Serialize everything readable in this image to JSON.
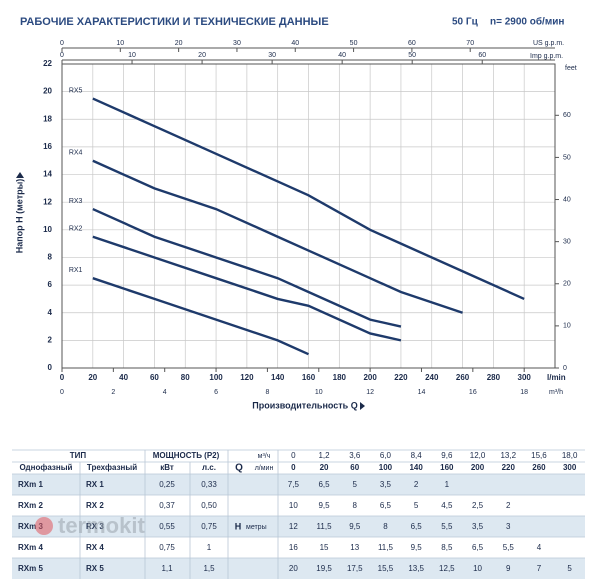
{
  "header": {
    "title": "РАБОЧИЕ ХАРАКТЕРИСТИКИ И ТЕХНИЧЕСКИЕ ДАННЫЕ",
    "frequency": "50 Гц",
    "speed": "n= 2900 об/мин"
  },
  "chart_data": {
    "type": "line",
    "xlabel": "Производительность Q",
    "ylabel": "Напор H (метры)",
    "x_unit": "l/min",
    "x": [
      20,
      60,
      100,
      140,
      160,
      200,
      220,
      260,
      300
    ],
    "series": [
      {
        "name": "RX1",
        "color": "#1e3a6b",
        "values": [
          6.5,
          5,
          3.5,
          2,
          1,
          null,
          null,
          null,
          null
        ]
      },
      {
        "name": "RX2",
        "color": "#1e3a6b",
        "values": [
          9.5,
          8,
          6.5,
          5,
          4.5,
          2.5,
          2,
          null,
          null
        ]
      },
      {
        "name": "RX3",
        "color": "#1e3a6b",
        "values": [
          11.5,
          9.5,
          8,
          6.5,
          5.5,
          3.5,
          3,
          null,
          null
        ]
      },
      {
        "name": "RX4",
        "color": "#1e3a6b",
        "values": [
          15,
          13,
          11.5,
          9.5,
          8.5,
          6.5,
          5.5,
          4,
          null
        ]
      },
      {
        "name": "RX5",
        "color": "#1e3a6b",
        "values": [
          19.5,
          17.5,
          15.5,
          13.5,
          12.5,
          10,
          9,
          7,
          5
        ]
      }
    ],
    "xlim": [
      0,
      320
    ],
    "xticks": [
      0,
      20,
      40,
      60,
      80,
      100,
      120,
      140,
      160,
      180,
      200,
      220,
      240,
      260,
      280,
      300
    ],
    "ylim": [
      0,
      22
    ],
    "yticks": [
      0,
      2,
      4,
      6,
      8,
      10,
      12,
      14,
      16,
      18,
      20,
      22
    ],
    "grid": true,
    "us_gpm_axis": {
      "label": "US g.p.m.",
      "lim": [
        0,
        84.54
      ],
      "ticks": [
        0,
        10,
        20,
        30,
        40,
        50,
        60,
        70
      ]
    },
    "imp_gpm_axis": {
      "label": "Imp g.p.m.",
      "lim": [
        0,
        70.39
      ],
      "ticks": [
        0,
        10,
        20,
        30,
        40,
        50,
        60
      ]
    },
    "m3h_axis": {
      "label": "m³/h",
      "lim": [
        0,
        19.2
      ],
      "ticks": [
        0,
        2,
        4,
        6,
        8,
        10,
        12,
        14,
        16,
        18
      ]
    },
    "feet_axis": {
      "label": "feet",
      "lim": [
        0,
        72.18
      ],
      "ticks": [
        0,
        10,
        20,
        30,
        40,
        50,
        60
      ]
    }
  },
  "table": {
    "header": {
      "type": "ТИП",
      "power": "МОЩНОСТЬ (P2)",
      "q": "Q",
      "q_unit_m3h": "м³/ч",
      "q_unit_lmin": "л/мин",
      "single_phase": "Однофазный",
      "three_phase": "Трехфазный",
      "kw": "кВт",
      "hp": "л.с.",
      "h": "H",
      "h_unit": "метры"
    },
    "q_m3h": [
      "0",
      "1,2",
      "3,6",
      "6,0",
      "8,4",
      "9,6",
      "12,0",
      "13,2",
      "15,6",
      "18,0"
    ],
    "q_lmin": [
      "0",
      "20",
      "60",
      "100",
      "140",
      "160",
      "200",
      "220",
      "260",
      "300"
    ],
    "rows": [
      {
        "single": "RXm 1",
        "three": "RX 1",
        "kw": "0,25",
        "hp": "0,33",
        "h": [
          "7,5",
          "6,5",
          "5",
          "3,5",
          "2",
          "1"
        ]
      },
      {
        "single": "RXm 2",
        "three": "RX 2",
        "kw": "0,37",
        "hp": "0,50",
        "h": [
          "10",
          "9,5",
          "8",
          "6,5",
          "5",
          "4,5",
          "2,5",
          "2"
        ]
      },
      {
        "single": "RXm 3",
        "three": "RX 3",
        "kw": "0,55",
        "hp": "0,75",
        "h": [
          "12",
          "11,5",
          "9,5",
          "8",
          "6,5",
          "5,5",
          "3,5",
          "3"
        ]
      },
      {
        "single": "RXm 4",
        "three": "RX 4",
        "kw": "0,75",
        "hp": "1",
        "h": [
          "16",
          "15",
          "13",
          "11,5",
          "9,5",
          "8,5",
          "6,5",
          "5,5",
          "4"
        ]
      },
      {
        "single": "RXm 5",
        "three": "RX 5",
        "kw": "1,1",
        "hp": "1,5",
        "h": [
          "20",
          "19,5",
          "17,5",
          "15,5",
          "13,5",
          "12,5",
          "10",
          "9",
          "7",
          "5"
        ]
      }
    ]
  },
  "watermark": "termokit"
}
